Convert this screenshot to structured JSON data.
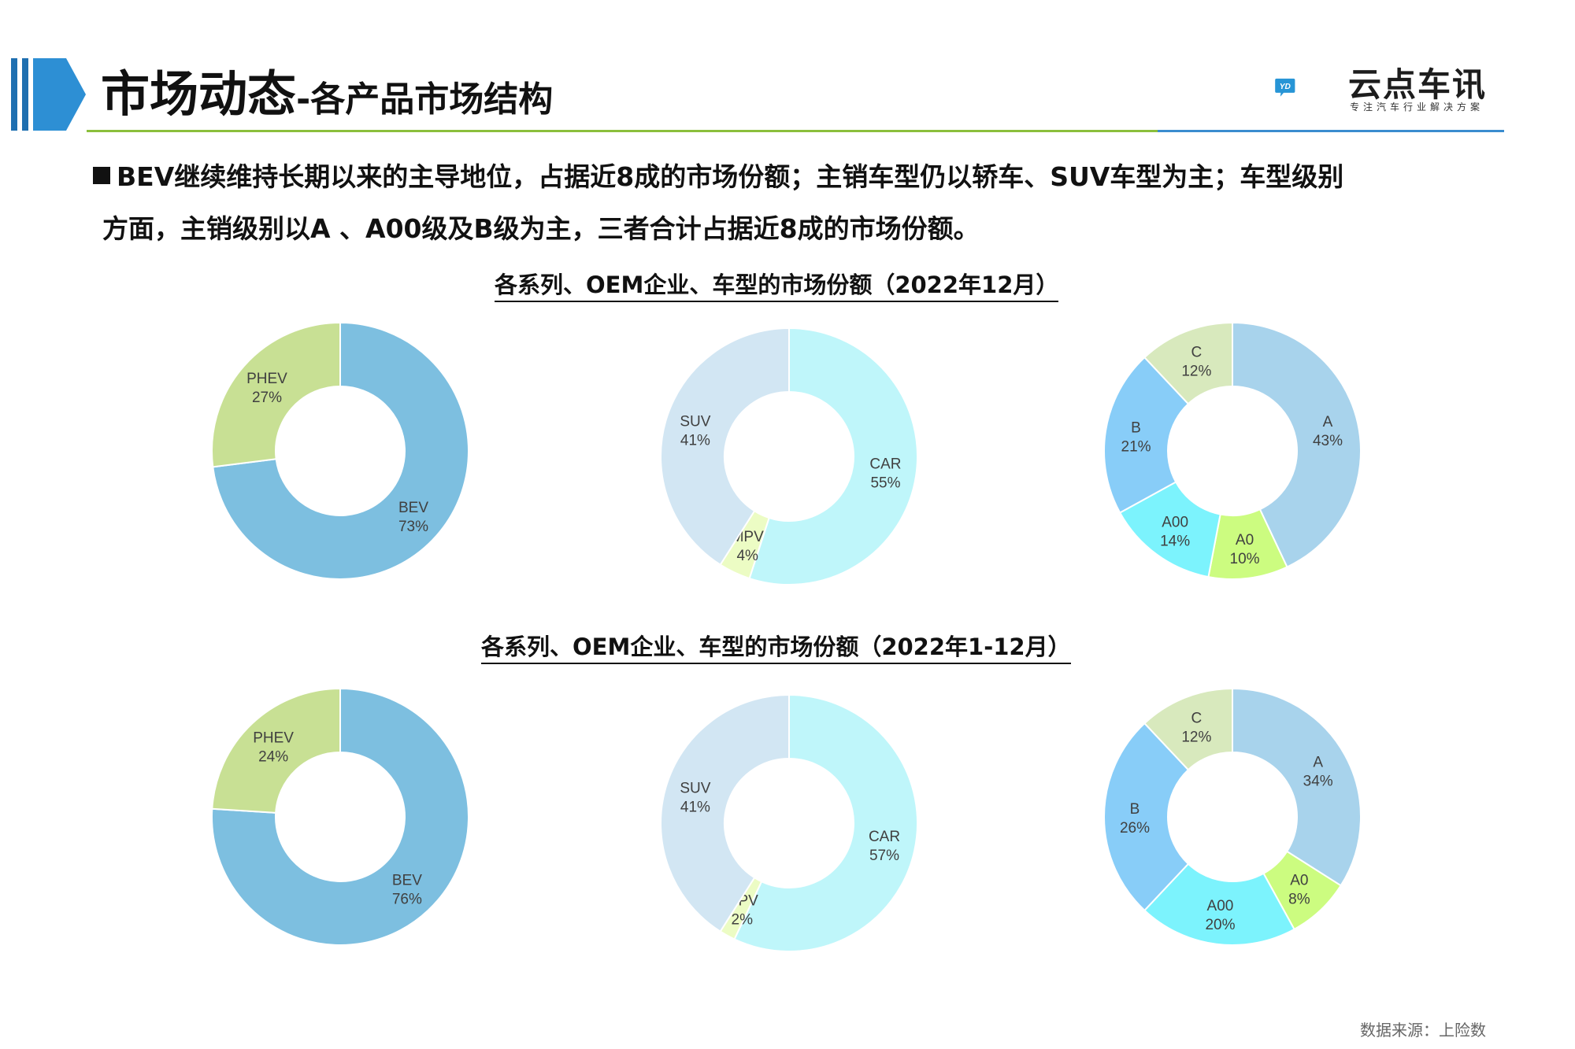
{
  "header": {
    "title_main": "市场动态",
    "title_sub": "-各产品市场结构",
    "logo_name": "云点车讯",
    "logo_tagline": "专注汽车行业解决方案",
    "logo_mark": "YD"
  },
  "bullet": {
    "line1": "BEV继续维持长期以来的主导地位，占据近8成的市场份额；主销车型仍以轿车、SUV车型为主；车型级别",
    "line2": "方面，主销级别以A 、A00级及B级为主，三者合计占据近8成的市场份额。"
  },
  "sections": [
    {
      "title": "各系列、OEM企业、车型的市场份额（2022年12月）"
    },
    {
      "title": "各系列、OEM企业、车型的市场份额（2022年1-12月）"
    }
  ],
  "chart_data": [
    {
      "type": "pie",
      "title": "",
      "slices": [
        {
          "label": "BEV",
          "value": 73,
          "value_label": "73%",
          "color": "#7dbfe0"
        },
        {
          "label": "PHEV",
          "value": 27,
          "value_label": "27%",
          "color": "#c8e094"
        }
      ]
    },
    {
      "type": "pie",
      "title": "",
      "slices": [
        {
          "label": "CAR",
          "value": 55,
          "value_label": "55%",
          "color": "#bff6fa"
        },
        {
          "label": "MPV",
          "value": 4,
          "value_label": "4%",
          "color": "#ecfcc4"
        },
        {
          "label": "SUV",
          "value": 41,
          "value_label": "41%",
          "color": "#d2e6f3"
        }
      ]
    },
    {
      "type": "pie",
      "title": "",
      "slices": [
        {
          "label": "A",
          "value": 43,
          "value_label": "43%",
          "color": "#a8d3ec"
        },
        {
          "label": "A0",
          "value": 10,
          "value_label": "10%",
          "color": "#ccfc80"
        },
        {
          "label": "A00",
          "value": 14,
          "value_label": "14%",
          "color": "#7cf3fd"
        },
        {
          "label": "B",
          "value": 21,
          "value_label": "21%",
          "color": "#88cdf8"
        },
        {
          "label": "C",
          "value": 12,
          "value_label": "12%",
          "color": "#d8e9bd"
        }
      ]
    },
    {
      "type": "pie",
      "title": "",
      "slices": [
        {
          "label": "BEV",
          "value": 76,
          "value_label": "76%",
          "color": "#7dbfe0"
        },
        {
          "label": "PHEV",
          "value": 24,
          "value_label": "24%",
          "color": "#c8e094"
        }
      ]
    },
    {
      "type": "pie",
      "title": "",
      "slices": [
        {
          "label": "CAR",
          "value": 57,
          "value_label": "57%",
          "color": "#bff6fa"
        },
        {
          "label": "MPV",
          "value": 2,
          "value_label": "2%",
          "color": "#ecfcc4"
        },
        {
          "label": "SUV",
          "value": 41,
          "value_label": "41%",
          "color": "#d2e6f3"
        }
      ]
    },
    {
      "type": "pie",
      "title": "",
      "slices": [
        {
          "label": "A",
          "value": 34,
          "value_label": "34%",
          "color": "#a8d3ec"
        },
        {
          "label": "A0",
          "value": 8,
          "value_label": "8%",
          "color": "#ccfc80"
        },
        {
          "label": "A00",
          "value": 20,
          "value_label": "20%",
          "color": "#7cf3fd"
        },
        {
          "label": "B",
          "value": 26,
          "value_label": "26%",
          "color": "#88cdf8"
        },
        {
          "label": "C",
          "value": 12,
          "value_label": "12%",
          "color": "#d8e9bd"
        }
      ]
    }
  ],
  "source": "数据来源：上险数"
}
